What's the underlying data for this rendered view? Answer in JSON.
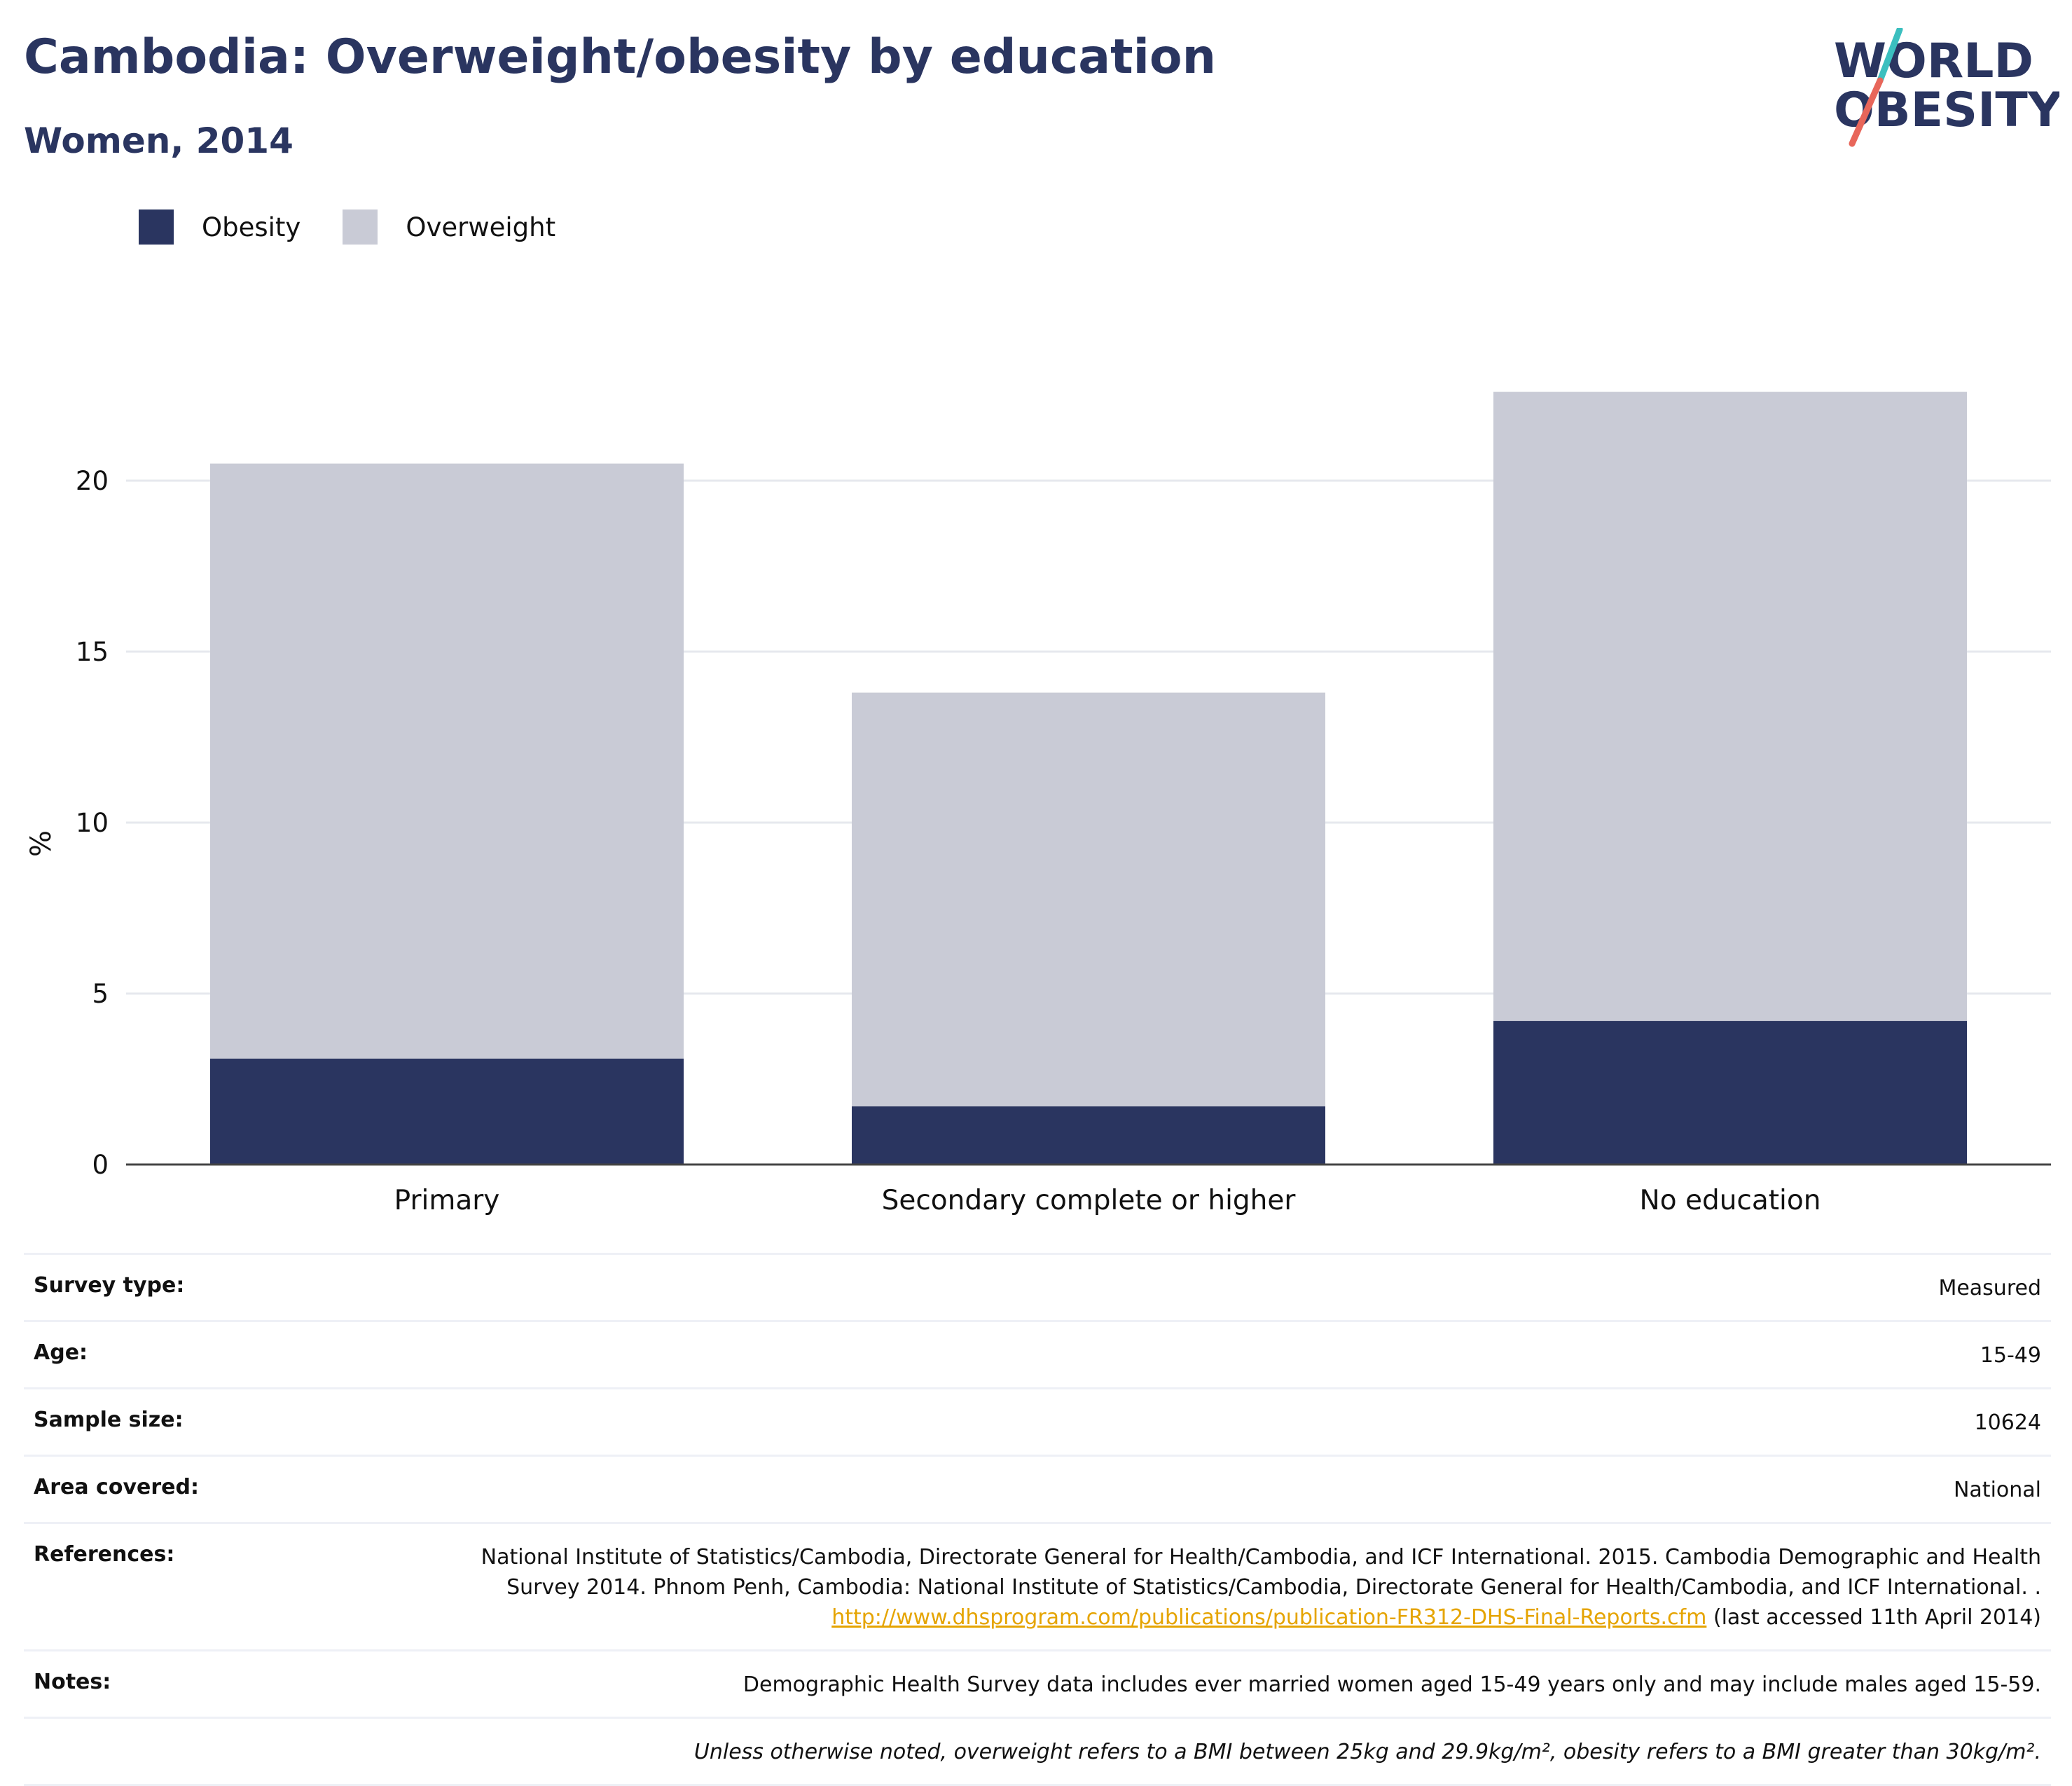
{
  "header": {
    "title": "Cambodia: Overweight/obesity by education",
    "subtitle": "Women, 2014"
  },
  "logo": {
    "line1": "WORLD",
    "line2": "OBESITY",
    "colors": {
      "text": "#2a3560",
      "slash_top": "#3bbfbf",
      "slash_bottom": "#e8665a"
    }
  },
  "legend": {
    "items": [
      {
        "label": "Obesity",
        "color": "#2a3560"
      },
      {
        "label": "Overweight",
        "color": "#c9cbd6"
      }
    ]
  },
  "chart_data": {
    "type": "bar",
    "stacked": true,
    "categories": [
      "Primary",
      "Secondary complete or higher",
      "No education"
    ],
    "series": [
      {
        "name": "Obesity",
        "color": "#2a3560",
        "values": [
          3.1,
          1.7,
          4.2
        ]
      },
      {
        "name": "Overweight",
        "color": "#c9cbd6",
        "values": [
          17.4,
          12.1,
          18.4
        ]
      }
    ],
    "totals": [
      20.5,
      13.8,
      22.6
    ],
    "ylabel": "%",
    "xlabel": "",
    "ylim": [
      0,
      24
    ],
    "yticks": [
      0,
      5,
      10,
      15,
      20
    ],
    "grid": true,
    "legend_position": "top-left"
  },
  "details": {
    "rows": [
      {
        "key": "Survey type:",
        "value": "Measured"
      },
      {
        "key": "Age:",
        "value": "15-49"
      },
      {
        "key": "Sample size:",
        "value": "10624"
      },
      {
        "key": "Area covered:",
        "value": "National"
      }
    ],
    "references": {
      "key": "References:",
      "text_before": "National Institute of Statistics/Cambodia, Directorate General for Health/Cambodia, and ICF International. 2015. Cambodia Demographic and Health Survey 2014. Phnom Penh, Cambodia: National Institute of Statistics/Cambodia, Directorate General for Health/Cambodia, and ICF International. . ",
      "link": "http://www.dhsprogram.com/publications/publication-FR312-DHS-Final-Reports.cfm",
      "text_after": " (last accessed 11th April 2014)"
    },
    "notes": {
      "key": "Notes:",
      "value": "Demographic Health Survey data includes ever married women aged 15-49 years only and may include males aged 15-59."
    },
    "definition": "Unless otherwise noted, overweight refers to a BMI between 25kg and 29.9kg/m², obesity refers to a BMI greater than 30kg/m²."
  }
}
